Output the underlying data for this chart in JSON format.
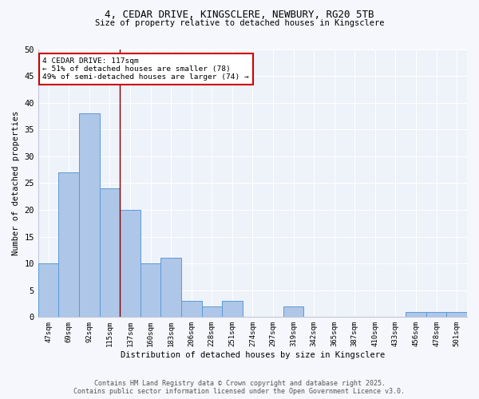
{
  "title_line1": "4, CEDAR DRIVE, KINGSCLERE, NEWBURY, RG20 5TB",
  "title_line2": "Size of property relative to detached houses in Kingsclere",
  "xlabel": "Distribution of detached houses by size in Kingsclere",
  "ylabel": "Number of detached properties",
  "categories": [
    "47sqm",
    "69sqm",
    "92sqm",
    "115sqm",
    "137sqm",
    "160sqm",
    "183sqm",
    "206sqm",
    "228sqm",
    "251sqm",
    "274sqm",
    "297sqm",
    "319sqm",
    "342sqm",
    "365sqm",
    "387sqm",
    "410sqm",
    "433sqm",
    "456sqm",
    "478sqm",
    "501sqm"
  ],
  "values": [
    10,
    27,
    38,
    24,
    20,
    10,
    11,
    3,
    2,
    3,
    0,
    0,
    2,
    0,
    0,
    0,
    0,
    0,
    1,
    1,
    1
  ],
  "bar_color": "#aec6e8",
  "bar_edge_color": "#5b9bd5",
  "vline_x_index": 3.5,
  "vline_color": "#7f0000",
  "annotation_title": "4 CEDAR DRIVE: 117sqm",
  "annotation_line1": "← 51% of detached houses are smaller (78)",
  "annotation_line2": "49% of semi-detached houses are larger (74) →",
  "annotation_box_edgecolor": "#cc0000",
  "ylim": [
    0,
    50
  ],
  "yticks": [
    0,
    5,
    10,
    15,
    20,
    25,
    30,
    35,
    40,
    45,
    50
  ],
  "bg_color": "#eef2f9",
  "fig_bg_color": "#f5f7fc",
  "grid_color": "#ffffff",
  "footer_line1": "Contains HM Land Registry data © Crown copyright and database right 2025.",
  "footer_line2": "Contains public sector information licensed under the Open Government Licence v3.0."
}
